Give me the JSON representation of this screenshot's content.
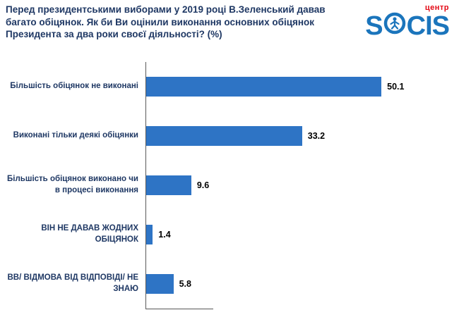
{
  "header": {
    "title": "Перед президентськими виборами у 2019 році В.Зеленський давав багато обіцянок. Як би Ви оцінили виконання основних обіцянок Президента за два роки своєї діяльності?  (%)",
    "logo": {
      "text_left": "S",
      "text_right": "CIS",
      "sub_label": "центр",
      "icon": "person-in-circle-icon",
      "brand_color": "#1B75BC",
      "sub_color": "#E30613"
    }
  },
  "chart_data": {
    "type": "bar",
    "orientation": "horizontal",
    "title": "Як би Ви оцінили виконання основних обіцянок Президента за два роки своєї діяльності? (%)",
    "categories": [
      "Більшість обіцянок не виконані",
      "Виконані тільки деякі обіцянки",
      "Більшість обіцянок виконано чи в процесі виконання",
      "ВІН НЕ ДАВАВ ЖОДНИХ ОБІЦЯНОК",
      "ВВ/ ВІДМОВА ВІД ВІДПОВІДІ/ НЕ ЗНАЮ"
    ],
    "values": [
      50.1,
      33.2,
      9.6,
      1.4,
      5.8
    ],
    "value_labels": [
      "50.1",
      "33.2",
      "9.6",
      "1.4",
      "5.8"
    ],
    "xlabel": "",
    "ylabel": "",
    "xlim": [
      0,
      55
    ],
    "grid": false,
    "legend": false,
    "bar_color": "#2E74C5",
    "label_color": "#1F3864",
    "value_color": "#000000",
    "axis_color": "#595959"
  }
}
